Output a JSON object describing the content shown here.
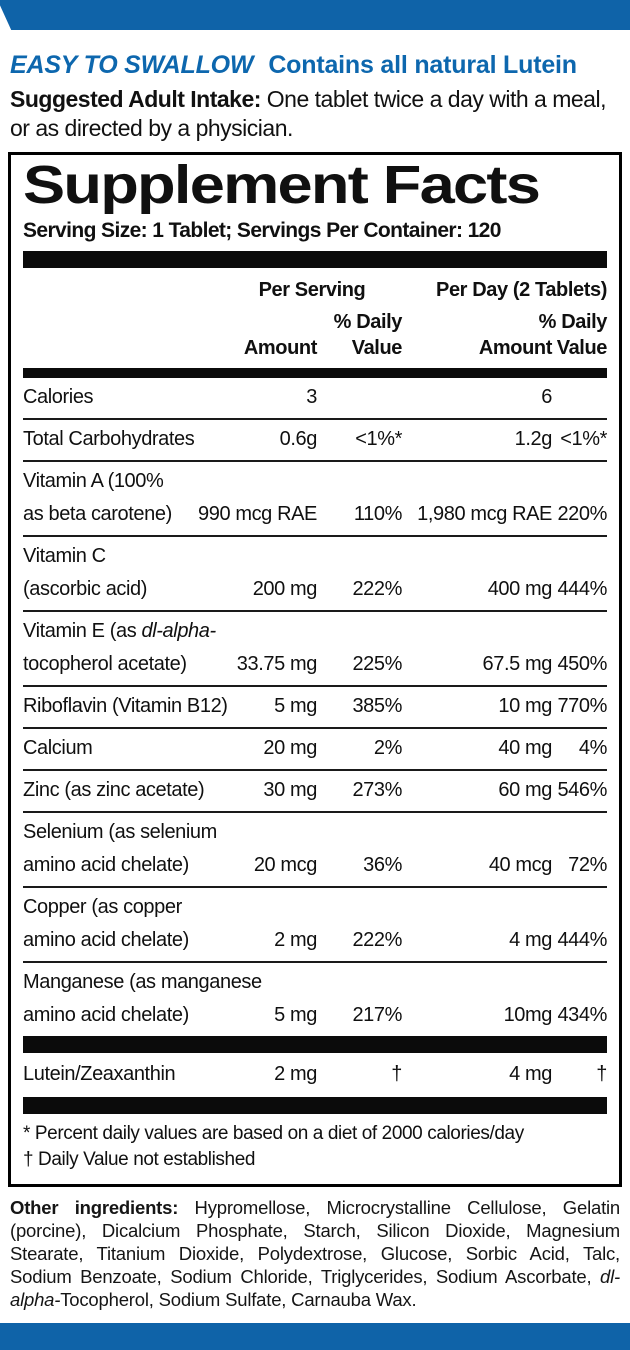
{
  "colors": {
    "banner_blue": "#0f63a8",
    "tagline_blue": "#0d67ae",
    "bar_black": "#0b0b0b"
  },
  "header": {
    "tagline_emph": "EASY TO SWALLOW",
    "tagline_rest": "Contains all natural Lutein",
    "intake_label": "Suggested Adult Intake:",
    "intake_text": " One tablet twice a day with a meal, or as directed by a physician."
  },
  "panel": {
    "title": "Supplement Facts",
    "serving_line": "Serving Size: 1 Tablet; Servings Per Container: 120",
    "columns": {
      "group_per_serving": "Per Serving",
      "group_per_day": "Per Day (2 Tablets)",
      "amount": "Amount",
      "daily_line1": "% Daily",
      "daily_line2": "Value"
    },
    "rows": [
      {
        "name_lines": [
          [
            {
              "t": "Calories"
            }
          ]
        ],
        "per_serving": {
          "amount": "3",
          "dv": ""
        },
        "per_day": {
          "amount": "6",
          "dv": ""
        }
      },
      {
        "name_lines": [
          [
            {
              "t": "Total Carbohydrates"
            }
          ]
        ],
        "per_serving": {
          "amount": "0.6g",
          "dv": "<1%*"
        },
        "per_day": {
          "amount": "1.2g",
          "dv": "<1%*"
        }
      },
      {
        "name_lines": [
          [
            {
              "t": "Vitamin A (100%"
            }
          ],
          [
            {
              "t": "as beta carotene)"
            }
          ]
        ],
        "per_serving": {
          "amount": "990 mcg RAE",
          "dv": "110%"
        },
        "per_day": {
          "amount": "1,980 mcg RAE",
          "dv": "220%"
        }
      },
      {
        "name_lines": [
          [
            {
              "t": "Vitamin C"
            }
          ],
          [
            {
              "t": "(ascorbic acid)"
            }
          ]
        ],
        "per_serving": {
          "amount": "200 mg",
          "dv": "222%"
        },
        "per_day": {
          "amount": "400 mg",
          "dv": "444%"
        }
      },
      {
        "name_lines": [
          [
            {
              "t": "Vitamin E (as "
            },
            {
              "t": "dl-alpha-",
              "i": true
            }
          ],
          [
            {
              "t": "tocopherol acetate)"
            }
          ]
        ],
        "per_serving": {
          "amount": "33.75 mg",
          "dv": "225%"
        },
        "per_day": {
          "amount": "67.5 mg",
          "dv": "450%"
        }
      },
      {
        "name_lines": [
          [
            {
              "t": "Riboflavin (Vitamin B12)"
            }
          ]
        ],
        "per_serving": {
          "amount": "5 mg",
          "dv": "385%"
        },
        "per_day": {
          "amount": "10 mg",
          "dv": "770%"
        }
      },
      {
        "name_lines": [
          [
            {
              "t": "Calcium"
            }
          ]
        ],
        "per_serving": {
          "amount": "20 mg",
          "dv": "2%"
        },
        "per_day": {
          "amount": "40 mg",
          "dv": "4%"
        }
      },
      {
        "name_lines": [
          [
            {
              "t": "Zinc (as zinc acetate)"
            }
          ]
        ],
        "per_serving": {
          "amount": "30 mg",
          "dv": "273%"
        },
        "per_day": {
          "amount": "60 mg",
          "dv": "546%"
        }
      },
      {
        "name_lines": [
          [
            {
              "t": "Selenium (as selenium"
            }
          ],
          [
            {
              "t": "amino acid chelate)"
            }
          ]
        ],
        "per_serving": {
          "amount": "20 mcg",
          "dv": "36%"
        },
        "per_day": {
          "amount": "40 mcg",
          "dv": "72%"
        }
      },
      {
        "name_lines": [
          [
            {
              "t": "Copper (as copper"
            }
          ],
          [
            {
              "t": "amino acid chelate)"
            }
          ]
        ],
        "per_serving": {
          "amount": "2 mg",
          "dv": "222%"
        },
        "per_day": {
          "amount": "4 mg",
          "dv": "444%"
        }
      },
      {
        "name_lines": [
          [
            {
              "t": "Manganese (as manganese"
            }
          ],
          [
            {
              "t": "amino acid chelate)"
            }
          ]
        ],
        "per_serving": {
          "amount": "5 mg",
          "dv": "217%"
        },
        "per_day": {
          "amount": "10mg",
          "dv": "434%"
        }
      }
    ],
    "lutein_row": {
      "name_lines": [
        [
          {
            "t": "Lutein/Zeaxanthin"
          }
        ]
      ],
      "per_serving": {
        "amount": "2 mg",
        "dv": "†"
      },
      "per_day": {
        "amount": "4 mg",
        "dv": "†"
      }
    },
    "footnotes": [
      "* Percent daily values are based on a diet of 2000 calories/day",
      "† Daily Value not established"
    ]
  },
  "other_ingredients": {
    "segments": [
      {
        "t": "Other ingredients:",
        "b": true
      },
      {
        "t": " Hypromellose, Microcrystalline Cellulose, Gelatin (porcine), Dicalcium Phosphate, Starch, Silicon Dioxide, Magnesium Stearate, Titanium Dioxide, Polydextrose, Glucose, Sorbic Acid, Talc, Sodium Benzoate, Sodium Chloride, Triglycerides, Sodium Ascorbate, "
      },
      {
        "t": "dl-alpha-",
        "i": true
      },
      {
        "t": "Tocopherol, Sodium Sulfate, Carnauba Wax."
      }
    ]
  }
}
